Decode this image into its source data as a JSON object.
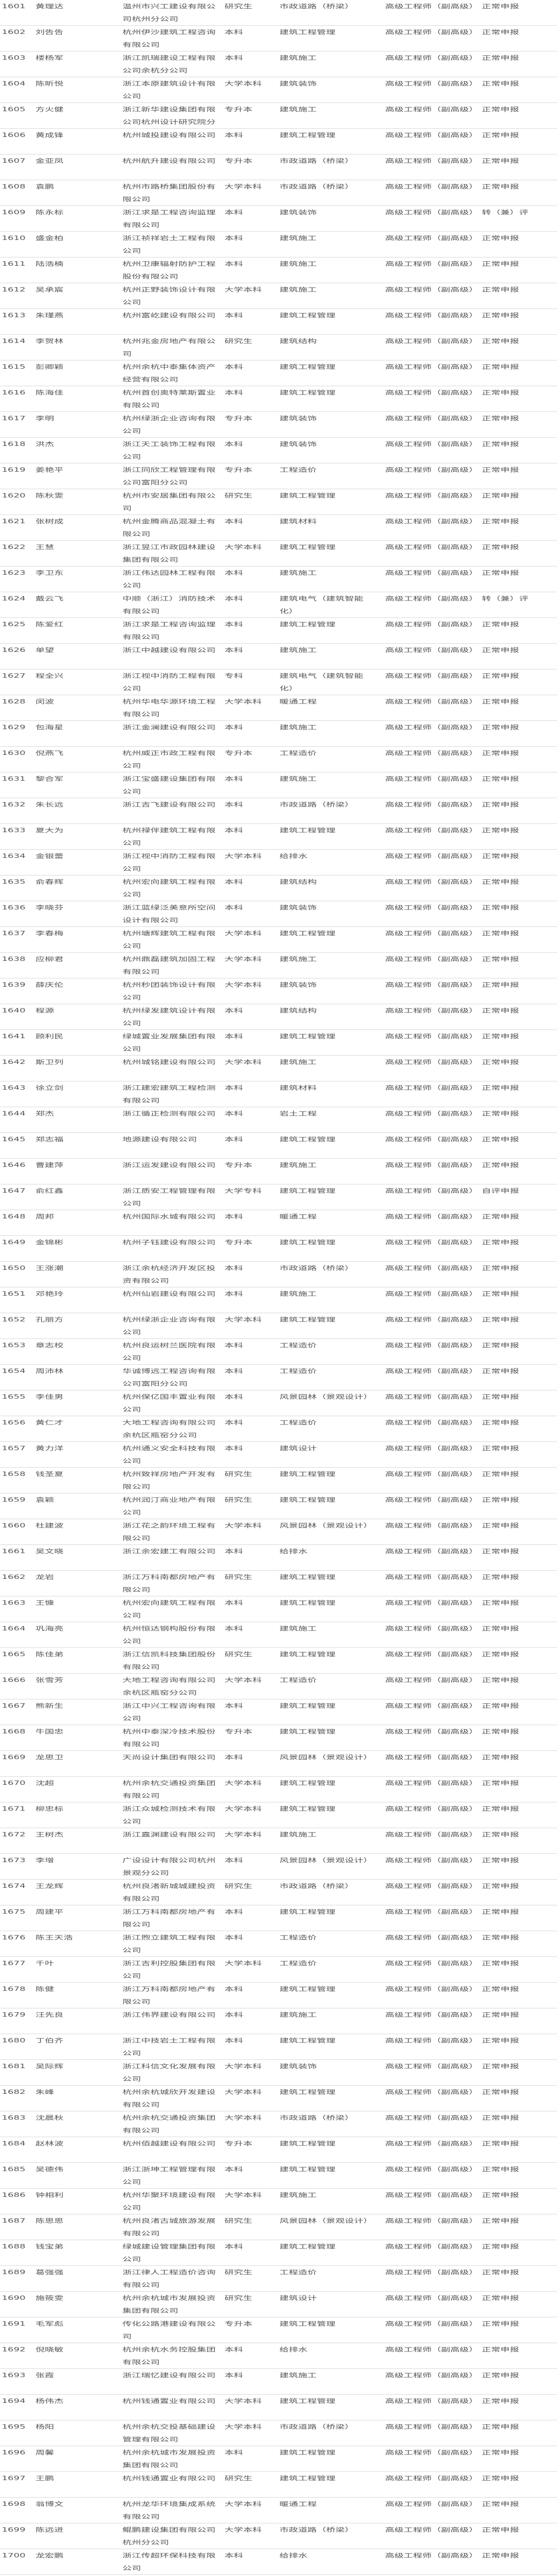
{
  "rows": [
    [
      "1601",
      "黄理达",
      "温州市兴工建设有限公司杭州分公司",
      "研究生",
      "市政道路（桥梁）",
      "高级工程师（副高级）",
      "正常申报"
    ],
    [
      "1602",
      "刘告告",
      "杭州伊沙建筑工程咨询有限公司",
      "本科",
      "建筑工程管理",
      "高级工程师（副高级）",
      "正常申报"
    ],
    [
      "1603",
      "楼杨军",
      "浙江凯瑞建设工程有限公司余杭分公司",
      "本科",
      "建筑施工",
      "高级工程师（副高级）",
      "正常申报"
    ],
    [
      "1604",
      "陈昕悦",
      "浙江本原建筑设计有限公司",
      "大学本科",
      "建筑装饰",
      "高级工程师（副高级）",
      "正常申报"
    ],
    [
      "1605",
      "方火健",
      "浙江新华建设集团有限公司杭州设计研究院分",
      "专升本",
      "建筑施工",
      "高级工程师（副高级）",
      "正常申报"
    ],
    [
      "1606",
      "黄成锋",
      "杭州城投建设有限公司",
      "本科",
      "建筑工程管理",
      "高级工程师（副高级）",
      "正常申报"
    ],
    [
      "1607",
      "金亚凤",
      "杭州航升建设有限公司",
      "专升本",
      "市政道路（桥梁）",
      "高级工程师（副高级）",
      "正常申报"
    ],
    [
      "1608",
      "袁鹏",
      "杭州市路桥集团股份有限公司",
      "大学本科",
      "市政道路（桥梁）",
      "高级工程师（副高级）",
      "正常申报"
    ],
    [
      "1609",
      "陈永标",
      "浙江求是工程咨询监理有限公司",
      "本科",
      "建筑装饰",
      "高级工程师（副高级）",
      "转（兼）评"
    ],
    [
      "1610",
      "盛金柏",
      "浙江祯祥岩土工程有限公司",
      "本科",
      "建筑施工",
      "高级工程师（副高级）",
      "正常申报"
    ],
    [
      "1611",
      "陆浩楠",
      "杭州卫康辐射防护工程股份有限公司",
      "本科",
      "建筑施工",
      "高级工程师（副高级）",
      "正常申报"
    ],
    [
      "1612",
      "吴承宸",
      "杭州正野装饰设计有限公司",
      "大学本科",
      "建筑施工",
      "高级工程师（副高级）",
      "正常申报"
    ],
    [
      "1613",
      "朱瑾燕",
      "杭州富屹建设有限公司",
      "本科",
      "建筑工程管理",
      "高级工程师（副高级）",
      "正常申报"
    ],
    [
      "1614",
      "李贺林",
      "杭州兆金房地产有限公司",
      "研究生",
      "建筑结构",
      "高级工程师（副高级）",
      "正常申报"
    ],
    [
      "1615",
      "彭卿颖",
      "杭州余杭中泰集体资产经营有限公司",
      "本科",
      "建筑工程管理",
      "高级工程师（副高级）",
      "正常申报"
    ],
    [
      "1616",
      "陈海佳",
      "杭州首创奥特莱斯置业有限公司",
      "本科",
      "建筑工程管理",
      "高级工程师（副高级）",
      "正常申报"
    ],
    [
      "1617",
      "李明",
      "杭州绿浙企业咨询有限公司",
      "专升本",
      "建筑装饰",
      "高级工程师（副高级）",
      "正常申报"
    ],
    [
      "1618",
      "洪杰",
      "浙江天工装饰工程有限公司",
      "本科",
      "建筑装饰",
      "高级工程师（副高级）",
      "正常申报"
    ],
    [
      "1619",
      "姜艳平",
      "浙江同欣工程管理有限公司富阳分公司",
      "专升本",
      "工程造价",
      "高级工程师（副高级）",
      "正常申报"
    ],
    [
      "1620",
      "陈秋雯",
      "杭州市安居集团有限公司",
      "研究生",
      "建筑工程管理",
      "高级工程师（副高级）",
      "正常申报"
    ],
    [
      "1621",
      "张树成",
      "杭州金腾商品混凝土有限公司",
      "本科",
      "建筑材料",
      "高级工程师（副高级）",
      "正常申报"
    ],
    [
      "1622",
      "王慧",
      "浙江昱江市政园林建设集团有限公司",
      "大学本科",
      "建筑工程管理",
      "高级工程师（副高级）",
      "正常申报"
    ],
    [
      "1623",
      "李卫东",
      "浙江伟达园林工程有限公司",
      "本科",
      "建筑施工",
      "高级工程师（副高级）",
      "正常申报"
    ],
    [
      "1624",
      "戴云飞",
      "中顺（浙江）消防技术有限公司",
      "本科",
      "建筑电气（建筑智能化）",
      "高级工程师（副高级）",
      "转（兼）评"
    ],
    [
      "1625",
      "陈爱红",
      "浙江求是工程咨询监理有限公司",
      "本科",
      "建筑工程管理",
      "高级工程师（副高级）",
      "正常申报"
    ],
    [
      "1626",
      "单望",
      "浙江中越建设有限公司",
      "本科",
      "建筑施工",
      "高级工程师（副高级）",
      "正常申报"
    ],
    [
      "1627",
      "程全兴",
      "浙江视中消防工程有限公司",
      "专科",
      "建筑电气（建筑智能化）",
      "高级工程师（副高级）",
      "正常申报"
    ],
    [
      "1628",
      "闵波",
      "杭州华电华源环境工程有限公司",
      "大学本科",
      "暖通工程",
      "高级工程师（副高级）",
      "正常申报"
    ],
    [
      "1629",
      "包海星",
      "浙江金澜建设有限公司",
      "本科",
      "建筑施工",
      "高级工程师（副高级）",
      "正常申报"
    ],
    [
      "1630",
      "倪燕飞",
      "杭州威正市政工程有限公司",
      "专升本",
      "工程造价",
      "高级工程师（副高级）",
      "正常申报"
    ],
    [
      "1631",
      "黎合军",
      "浙江宝盛建设集团有限公司",
      "本科",
      "建筑施工",
      "高级工程师（副高级）",
      "正常申报"
    ],
    [
      "1632",
      "朱长远",
      "浙江吉飞建设有限公司",
      "本科",
      "市政道路（桥梁）",
      "高级工程师（副高级）",
      "正常申报"
    ],
    [
      "1633",
      "夏大为",
      "杭州禄伴建筑工程有限公司",
      "本科",
      "建筑工程管理",
      "高级工程师（副高级）",
      "正常申报"
    ],
    [
      "1634",
      "金银蕾",
      "浙江视中消防工程有限公司",
      "大学本科",
      "给排水",
      "高级工程师（副高级）",
      "正常申报"
    ],
    [
      "1635",
      "俞春辉",
      "杭州宏向建筑工程有限公司",
      "本科",
      "建筑结构",
      "高级工程师（副高级）",
      "正常申报"
    ],
    [
      "1636",
      "李晓芬",
      "浙江蓝绿泛美意所空间设计有限公司",
      "本科",
      "建筑装饰",
      "高级工程师（副高级）",
      "正常申报"
    ],
    [
      "1637",
      "李春梅",
      "杭州塘辉建筑工程有限公司",
      "大学本科",
      "建筑工程管理",
      "高级工程师（副高级）",
      "正常申报"
    ],
    [
      "1638",
      "应柳君",
      "杭州鼎磊建筑加固工程有限公司",
      "大学本科",
      "建筑施工",
      "高级工程师（副高级）",
      "正常申报"
    ],
    [
      "1639",
      "薛庆伦",
      "杭州秒团装饰设计有限公司",
      "大学本科",
      "建筑装饰",
      "高级工程师（副高级）",
      "正常申报"
    ],
    [
      "1640",
      "程源",
      "杭州绿发建筑设计有限公司",
      "本科",
      "建筑结构",
      "高级工程师（副高级）",
      "正常申报"
    ],
    [
      "1641",
      "顾利民",
      "绿城置业发展集团有限公司",
      "本科",
      "建筑工程管理",
      "高级工程师（副高级）",
      "正常申报"
    ],
    [
      "1642",
      "斯卫列",
      "杭州城铭建设有限公司",
      "大学本科",
      "建筑施工",
      "高级工程师（副高级）",
      "正常申报"
    ],
    [
      "1643",
      "徐立剑",
      "浙江建宏建筑工程检测有限公司",
      "本科",
      "建筑材料",
      "高级工程师（副高级）",
      "正常申报"
    ],
    [
      "1644",
      "郑杰",
      "浙江循正检测有限公司",
      "本科",
      "岩土工程",
      "高级工程师（副高级）",
      "正常申报"
    ],
    [
      "1645",
      "郑志福",
      "地源建设有限公司",
      "本科",
      "建筑工程管理",
      "高级工程师（副高级）",
      "正常申报"
    ],
    [
      "1646",
      "曹建萍",
      "浙江运发建设有限公司",
      "专升本",
      "建筑施工",
      "高级工程师（副高级）",
      "正常申报"
    ],
    [
      "1647",
      "俞红鑫",
      "浙江质安工程管理有限公司",
      "大学专科",
      "建筑工程管理",
      "高级工程师（副高级）",
      "自评申报"
    ],
    [
      "1648",
      "周邦",
      "杭州国际水城有限公司",
      "本科",
      "暖通工程",
      "高级工程师（副高级）",
      "正常申报"
    ],
    [
      "1649",
      "金锦彬",
      "杭州子钰建设有限公司",
      "专升本",
      "建筑工程管理",
      "高级工程师（副高级）",
      "正常申报"
    ],
    [
      "1650",
      "王涨潮",
      "浙江余杭经济开发区投资有限公司",
      "本科",
      "市政道路（桥梁）",
      "高级工程师（副高级）",
      "正常申报"
    ],
    [
      "1651",
      "邓艳玲",
      "杭州仙岩建设有限公司",
      "本科",
      "建筑施工",
      "高级工程师（副高级）",
      "正常申报"
    ],
    [
      "1652",
      "孔丽方",
      "杭州绿浙企业咨询有限公司",
      "大学本科",
      "建筑工程管理",
      "高级工程师（副高级）",
      "正常申报"
    ],
    [
      "1653",
      "章志校",
      "杭州良运树兰医院有限公司",
      "本科",
      "工程造价",
      "高级工程师（副高级）",
      "正常申报"
    ],
    [
      "1654",
      "周沛林",
      "华诚博远工程咨询有限公司富阳分公司",
      "本科",
      "工程造价",
      "高级工程师（副高级）",
      "正常申报"
    ],
    [
      "1655",
      "李佳男",
      "杭州保亿国丰置业有限公司",
      "本科",
      "风景园林（景观设计）",
      "高级工程师（副高级）",
      "正常申报"
    ],
    [
      "1656",
      "黄仁才",
      "大地工程咨询有限公司余杭区瓶窑分公司",
      "本科",
      "工程造价",
      "高级工程师（副高级）",
      "正常申报"
    ],
    [
      "1657",
      "黄力洋",
      "杭州通义安全科技有限公司",
      "本科",
      "建筑设计",
      "高级工程师（副高级）",
      "正常申报"
    ],
    [
      "1658",
      "钱圣夏",
      "杭州致祥房地产开发有限公司",
      "研究生",
      "建筑工程管理",
      "高级工程师（副高级）",
      "正常申报"
    ],
    [
      "1659",
      "袁颖",
      "杭州润汀商业地产有限公司",
      "研究生",
      "建筑工程管理",
      "高级工程师（副高级）",
      "正常申报"
    ],
    [
      "1660",
      "杜建波",
      "浙江花之韵环境工程有限公司",
      "大学本科",
      "风景园林（景观设计）",
      "高级工程师（副高级）",
      "正常申报"
    ],
    [
      "1661",
      "吴文晓",
      "浙江余宏建工有限公司",
      "本科",
      "给排水",
      "高级工程师（副高级）",
      "正常申报"
    ],
    [
      "1662",
      "龙岩",
      "浙江万科南都房地产有限公司",
      "研究生",
      "建筑工程管理",
      "高级工程师（副高级）",
      "正常申报"
    ],
    [
      "1663",
      "王慷",
      "杭州宏向建筑工程有限公司",
      "本科",
      "建筑工程管理",
      "高级工程师（副高级）",
      "正常申报"
    ],
    [
      "1664",
      "巩海亮",
      "杭州恒达钢构股份有限公司",
      "本科",
      "建筑施工",
      "高级工程师（副高级）",
      "正常申报"
    ],
    [
      "1665",
      "陈佳弟",
      "浙江信凯科技集团股份有限公司",
      "研究生",
      "建筑工程管理",
      "高级工程师（副高级）",
      "正常申报"
    ],
    [
      "1666",
      "张雪芳",
      "大地工程咨询有限公司余杭区瓶窑分公司",
      "大学本科",
      "工程造价",
      "高级工程师（副高级）",
      "正常申报"
    ],
    [
      "1667",
      "熊新生",
      "浙江中兴工程咨询有限公司",
      "本科",
      "建筑工程管理",
      "高级工程师（副高级）",
      "正常申报"
    ],
    [
      "1668",
      "牛国忠",
      "杭州中泰深冷技术股份有限公司",
      "专升本",
      "建筑工程管理",
      "高级工程师（副高级）",
      "正常申报"
    ],
    [
      "1669",
      "龙思卫",
      "天尚设计集团有限公司",
      "本科",
      "风景园林（景观设计）",
      "高级工程师（副高级）",
      "正常申报"
    ],
    [
      "1670",
      "沈超",
      "杭州余杭交通投资集团有限公司",
      "大学本科",
      "建筑工程管理",
      "高级工程师（副高级）",
      "正常申报"
    ],
    [
      "1671",
      "柳忠标",
      "浙江众城检测技术有限公司",
      "大学本科",
      "建筑工程管理",
      "高级工程师（副高级）",
      "正常申报"
    ],
    [
      "1672",
      "王树杰",
      "浙江嘉渊建设有限公司",
      "大学本科",
      "建筑施工",
      "高级工程师（副高级）",
      "正常申报"
    ],
    [
      "1673",
      "李增",
      "广设设计有限公司杭州景观分公司",
      "本科",
      "风景园林（景观设计）",
      "高级工程师（副高级）",
      "正常申报"
    ],
    [
      "1674",
      "王龙辉",
      "杭州良渚新城城建投资有限公司",
      "研究生",
      "市政道路（桥梁）",
      "高级工程师（副高级）",
      "正常申报"
    ],
    [
      "1675",
      "周建平",
      "浙江万科南都房地产有限公司",
      "本科",
      "建筑工程管理",
      "高级工程师（副高级）",
      "正常申报"
    ],
    [
      "1676",
      "陈王天浩",
      "浙江煦立建筑工程有限公司",
      "本科",
      "工程造价",
      "高级工程师（副高级）",
      "正常申报"
    ],
    [
      "1677",
      "千叶",
      "浙江吉利控股集团有限公司",
      "大学本科",
      "工程造价",
      "高级工程师（副高级）",
      "正常申报"
    ],
    [
      "1678",
      "陈健",
      "浙江万科南都房地产有限公司",
      "本科",
      "建筑工程管理",
      "高级工程师（副高级）",
      "正常申报"
    ],
    [
      "1679",
      "汪先良",
      "浙江伟界建设有限公司",
      "本科",
      "建筑施工",
      "高级工程师（副高级）",
      "正常申报"
    ],
    [
      "1680",
      "丁伯齐",
      "浙江中技岩土工程有限公司",
      "本科",
      "建筑工程管理",
      "高级工程师（副高级）",
      "正常申报"
    ],
    [
      "1681",
      "吴际辉",
      "浙江科信文化发展有限公司",
      "大学本科",
      "建筑装饰",
      "高级工程师（副高级）",
      "正常申报"
    ],
    [
      "1682",
      "朱峰",
      "杭州余杭城欣开发建设有限公司",
      "大学本科",
      "建筑工程管理",
      "高级工程师（副高级）",
      "正常申报"
    ],
    [
      "1683",
      "沈晨秋",
      "杭州余杭交通投资集团有限公司",
      "大学本科",
      "市政道路（桥梁）",
      "高级工程师（副高级）",
      "正常申报"
    ],
    [
      "1684",
      "赵林波",
      "杭州佰越建设有限公司",
      "专升本",
      "建筑工程管理",
      "高级工程师（副高级）",
      "正常申报"
    ],
    [
      "1685",
      "吴德伟",
      "浙江浙坤工程管理有限公司",
      "本科",
      "建筑工程管理",
      "高级工程师（副高级）",
      "正常申报"
    ],
    [
      "1686",
      "钟相利",
      "杭州华聚环境建设有限公司",
      "大学本科",
      "建筑施工",
      "高级工程师（副高级）",
      "正常申报"
    ],
    [
      "1687",
      "陈思思",
      "杭州良渚古城旅游发展有限公司",
      "研究生",
      "风景园林（景观设计）",
      "高级工程师（副高级）",
      "正常申报"
    ],
    [
      "1688",
      "钱宝弟",
      "绿城建设管理集团有限公司",
      "本科",
      "建筑工程管理",
      "高级工程师（副高级）",
      "正常申报"
    ],
    [
      "1689",
      "葛强强",
      "浙江律人工程造价咨询有限公司",
      "研究生",
      "工程造价",
      "高级工程师（副高级）",
      "正常申报"
    ],
    [
      "1690",
      "施筱雯",
      "杭州余杭城市发展投资集团有限公司",
      "研究生",
      "建筑设计",
      "高级工程师（副高级）",
      "正常申报"
    ],
    [
      "1691",
      "毛军彪",
      "传化公路港建设有限公司",
      "专升本",
      "建筑工程管理",
      "高级工程师（副高级）",
      "正常申报"
    ],
    [
      "1692",
      "倪晓敏",
      "杭州余杭水务控股集团有限公司",
      "本科",
      "给排水",
      "高级工程师（副高级）",
      "正常申报"
    ],
    [
      "1693",
      "张霞",
      "浙江瑞忆建设有限公司",
      "本科",
      "建筑施工",
      "高级工程师（副高级）",
      "正常申报"
    ],
    [
      "1694",
      "杨伟杰",
      "杭州钱通置业有限公司",
      "大学本科",
      "建筑工程管理",
      "高级工程师（副高级）",
      "正常申报"
    ],
    [
      "1695",
      "杨阳",
      "杭州余杭交投基础建设管理有限公司",
      "大学本科",
      "市政道路（桥梁）",
      "高级工程师（副高级）",
      "正常申报"
    ],
    [
      "1696",
      "周馨",
      "杭州余杭城市发展投资集团有限公司",
      "本科",
      "建筑工程管理",
      "高级工程师（副高级）",
      "正常申报"
    ],
    [
      "1697",
      "王鹏",
      "杭州钱通置业有限公司",
      "研究生",
      "建筑工程管理",
      "高级工程师（副高级）",
      "正常申报"
    ],
    [
      "1698",
      "翁博文",
      "杭州龙华环境集成系统有限公司",
      "大学本科",
      "暖通工程",
      "高级工程师（副高级）",
      "正常申报"
    ],
    [
      "1699",
      "陈远进",
      "鲲鹏建设集团有限公司杭州分公司",
      "大学本科",
      "市政道路（桥梁）",
      "高级工程师（副高级）",
      "正常申报"
    ],
    [
      "1700",
      "龙宏鹏",
      "浙江传超环保科技有限公司",
      "本科",
      "给排水",
      "高级工程师（副高级）",
      "正常申报"
    ]
  ]
}
